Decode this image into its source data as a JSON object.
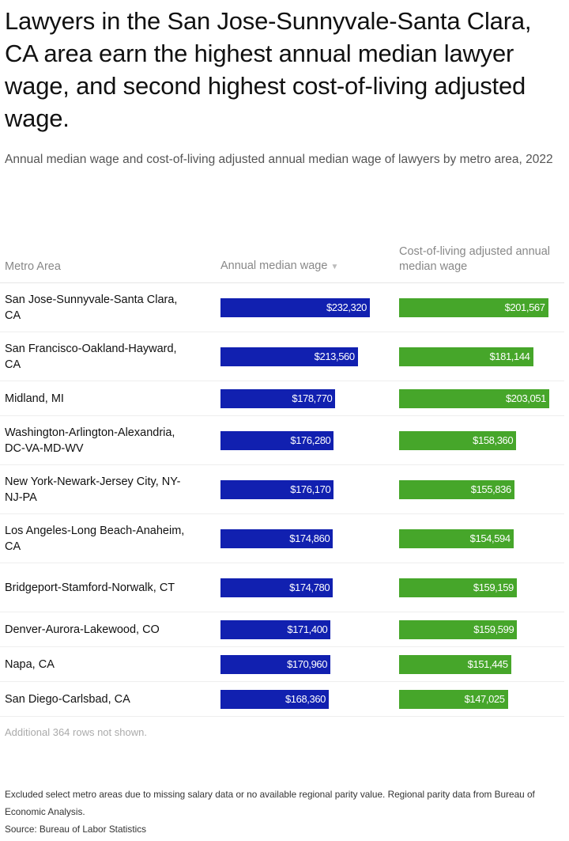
{
  "title": "Lawyers in the San Jose-Sunnyvale-Santa Clara, CA area earn the highest annual median lawyer wage, and second highest cost-of-living adjusted wage.",
  "subtitle": "Annual median wage and cost-of-living adjusted annual median wage of lawyers by metro area, 2022",
  "note": "Additional 364 rows not shown.",
  "footer": {
    "line1": "Excluded select metro areas due to missing salary data or no available regional parity value. Regional parity data from Bureau of Economic Analysis.",
    "line2": "Source: Bureau of Labor Statistics"
  },
  "colors": {
    "wage": "#1120b0",
    "adjusted": "#46a62a"
  },
  "chart_data": {
    "type": "table",
    "columns": [
      "Metro Area",
      "Annual median wage",
      "Cost-of-living adjusted annual median wage"
    ],
    "sort_indicator": "▼",
    "rows": [
      {
        "area": "San Jose-Sunnyvale-Santa Clara, CA",
        "wage": 232320,
        "wage_label": "$232,320",
        "adjusted": 201567,
        "adjusted_label": "$201,567"
      },
      {
        "area": "San Francisco-Oakland-Hayward, CA",
        "wage": 213560,
        "wage_label": "$213,560",
        "adjusted": 181144,
        "adjusted_label": "$181,144"
      },
      {
        "area": "Midland, MI",
        "wage": 178770,
        "wage_label": "$178,770",
        "adjusted": 203051,
        "adjusted_label": "$203,051"
      },
      {
        "area": "Washington-Arlington-Alexandria, DC-VA-MD-WV",
        "wage": 176280,
        "wage_label": "$176,280",
        "adjusted": 158360,
        "adjusted_label": "$158,360"
      },
      {
        "area": "New York-Newark-Jersey City, NY-NJ-PA",
        "wage": 176170,
        "wage_label": "$176,170",
        "adjusted": 155836,
        "adjusted_label": "$155,836"
      },
      {
        "area": "Los Angeles-Long Beach-Anaheim, CA",
        "wage": 174860,
        "wage_label": "$174,860",
        "adjusted": 154594,
        "adjusted_label": "$154,594"
      },
      {
        "area": "Bridgeport-Stamford-Norwalk, CT",
        "wage": 174780,
        "wage_label": "$174,780",
        "adjusted": 159159,
        "adjusted_label": "$159,159"
      },
      {
        "area": "Denver-Aurora-Lakewood, CO",
        "wage": 171400,
        "wage_label": "$171,400",
        "adjusted": 159599,
        "adjusted_label": "$159,599"
      },
      {
        "area": "Napa, CA",
        "wage": 170960,
        "wage_label": "$170,960",
        "adjusted": 151445,
        "adjusted_label": "$151,445"
      },
      {
        "area": "San Diego-Carlsbad, CA",
        "wage": 168360,
        "wage_label": "$168,360",
        "adjusted": 147025,
        "adjusted_label": "$147,025"
      }
    ]
  }
}
